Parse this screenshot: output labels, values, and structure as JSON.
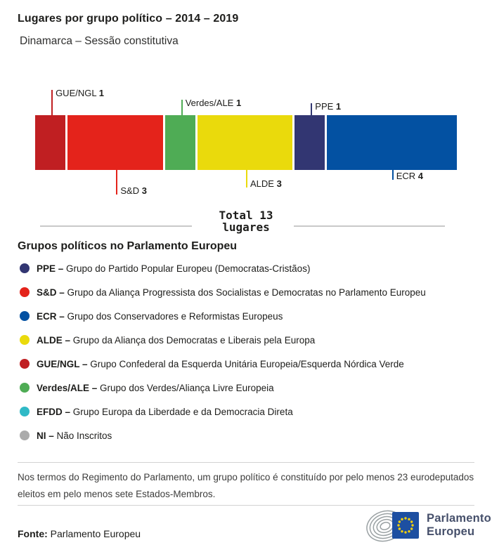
{
  "header": {
    "title": "Lugares por grupo político – 2014 – 2019",
    "subtitle": "Dinamarca – Sessão constitutiva"
  },
  "chart_data": {
    "type": "bar",
    "variant": "horizontal-stacked-single-bar",
    "title": "Lugares por grupo político – 2014 – 2019",
    "subtitle": "Dinamarca – Sessão constitutiva",
    "total": 13,
    "total_line1": "Total 13",
    "total_line2": "lugares",
    "unit": "lugares",
    "series": [
      {
        "name": "GUE/NGL",
        "value": 1,
        "color": "#c01f22",
        "label_side": "above",
        "tick_len": 36
      },
      {
        "name": "S&D",
        "value": 3,
        "color": "#e4231b",
        "label_side": "below",
        "tick_len": 35
      },
      {
        "name": "Verdes/ALE",
        "value": 1,
        "color": "#4fac55",
        "label_side": "above",
        "tick_len": 22
      },
      {
        "name": "ALDE",
        "value": 3,
        "color": "#eada0c",
        "label_side": "below",
        "tick_len": 25
      },
      {
        "name": "PPE",
        "value": 1,
        "color": "#323672",
        "label_side": "above",
        "tick_len": 17
      },
      {
        "name": "ECR",
        "value": 4,
        "color": "#0351a2",
        "label_side": "below",
        "tick_len": 14
      }
    ],
    "legend_position": "below",
    "grid": false
  },
  "legend": {
    "title": "Grupos políticos no Parlamento Europeu",
    "separator": "–",
    "items": [
      {
        "abbr": "PPE",
        "desc": "Grupo do Partido Popular Europeu (Democratas-Cristãos)",
        "color": "#323672"
      },
      {
        "abbr": "S&D",
        "desc": "Grupo da Aliança Progressista dos Socialistas e Democratas no Parlamento Europeu",
        "color": "#e4231b"
      },
      {
        "abbr": "ECR",
        "desc": "Grupo dos Conservadores e Reformistas Europeus",
        "color": "#0351a2"
      },
      {
        "abbr": "ALDE",
        "desc": "Grupo da Aliança dos Democratas e Liberais pela Europa",
        "color": "#eada0c"
      },
      {
        "abbr": "GUE/NGL",
        "desc": "Grupo Confederal da Esquerda Unitária Europeia/Esquerda Nórdica Verde",
        "color": "#c01f22"
      },
      {
        "abbr": "Verdes/ALE",
        "desc": "Grupo dos Verdes/Aliança Livre Europeia",
        "color": "#4fac55"
      },
      {
        "abbr": "EFDD",
        "desc": "Grupo Europa da Liberdade e da Democracia Direta",
        "color": "#2fb9c6"
      },
      {
        "abbr": "NI",
        "desc": "Não Inscritos",
        "color": "#ababab"
      }
    ]
  },
  "footer": {
    "note": "Nos termos do Regimento do Parlamento, um grupo político é constituído por pelo menos 23 eurodeputados eleitos em pelo menos sete Estados-Membros.",
    "source_label": "Fonte:",
    "source_value": "Parlamento Europeu",
    "logo_line1": "Parlamento",
    "logo_line2": "Europeu",
    "logo_flag_color": "#1d4fa1",
    "logo_star_color": "#f4d00c"
  }
}
